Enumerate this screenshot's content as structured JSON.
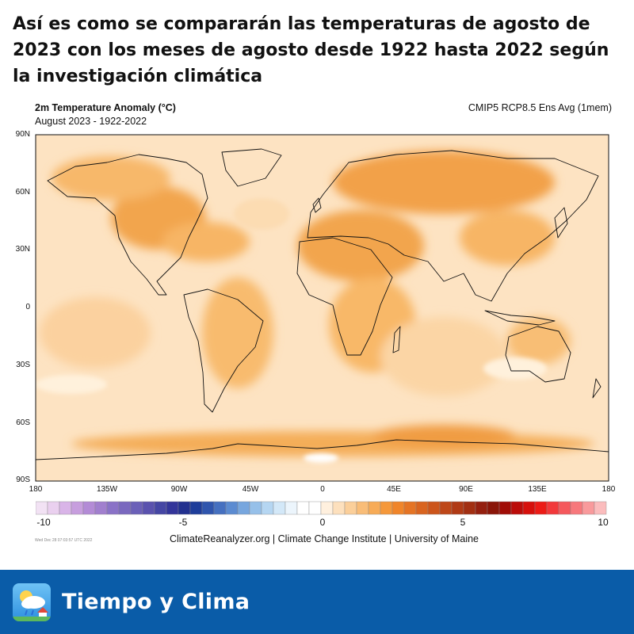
{
  "headline": "Así es como se compararán las temperaturas de agosto de 2023 con los meses de agosto desde 1922 hasta 2022 según la investigación climática",
  "map": {
    "title": "2m Temperature Anomaly (°C)",
    "subtitle": "August 2023 - 1922-2022",
    "model": "CMIP5 RCP8.5 Ens Avg (1mem)",
    "lat_labels": [
      "90N",
      "60N",
      "30N",
      "0",
      "30S",
      "60S",
      "90S"
    ],
    "lon_labels": [
      "180",
      "135W",
      "90W",
      "45W",
      "0",
      "45E",
      "90E",
      "135E",
      "180"
    ]
  },
  "colorbar": {
    "tick_labels": [
      "-10",
      "-5",
      "0",
      "5",
      "10"
    ],
    "colors": [
      "#f2e2f4",
      "#ead0ef",
      "#d9b4e8",
      "#c79ede",
      "#b38bd6",
      "#a17fce",
      "#8a72c7",
      "#7a68bf",
      "#6b60b8",
      "#5a52ae",
      "#4546a4",
      "#33359a",
      "#22308f",
      "#1e3d9a",
      "#2f55ad",
      "#4570c0",
      "#5b8bd1",
      "#77a6de",
      "#96c0e9",
      "#b5d6f2",
      "#d3e8f8",
      "#ecf5fc",
      "#ffffff",
      "#ffffff",
      "#fff0de",
      "#fde0bd",
      "#fbcf9a",
      "#f9bd78",
      "#f7ab57",
      "#f5983a",
      "#f0852a",
      "#e57424",
      "#d9641f",
      "#cc551b",
      "#be4718",
      "#b03a15",
      "#a22f12",
      "#941f0f",
      "#8a1508",
      "#a00c06",
      "#bb0c09",
      "#d6100c",
      "#ec1b16",
      "#f2383a",
      "#f5585c",
      "#f7787c",
      "#f99a9c",
      "#fbbcbd"
    ]
  },
  "credit": "ClimateReanalyzer.org | Climate Change Institute | University of Maine",
  "timestamp": "Wed Dec 28 07:03:57 UTC 2022",
  "brand": {
    "name": "Tiempo y Clima",
    "bar_color": "#0a5ca8"
  }
}
